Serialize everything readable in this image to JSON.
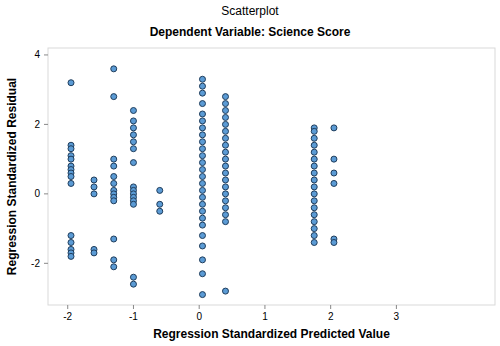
{
  "chart_data": {
    "type": "scatter",
    "title": "Scatterplot",
    "subtitle": "Dependent Variable: Science Score",
    "x_label": "Regression Standardized Predicted Value",
    "y_label": "Regression Standardized Residual",
    "color": "#5b9bd5",
    "marker": "circle",
    "grid": false,
    "xlim": [
      -2.3,
      4.5
    ],
    "xticks": [
      -2,
      -1,
      0,
      1,
      2,
      3
    ],
    "ylim": [
      -3.2,
      4.2
    ],
    "yticks": [
      -2,
      0,
      2,
      4
    ],
    "x": [
      -1.95,
      -1.95,
      -1.95,
      -1.95,
      -1.95,
      -1.95,
      -1.95,
      -1.95,
      -1.95,
      -1.95,
      -1.95,
      -1.95,
      -1.95,
      -1.95,
      -1.95,
      -1.6,
      -1.6,
      -1.6,
      -1.6,
      -1.6,
      -1.3,
      -1.3,
      -1.3,
      -1.3,
      -1.3,
      -1.3,
      -1.3,
      -1.3,
      -1.3,
      -1.3,
      -1.3,
      -1.3,
      -1.3,
      -1.0,
      -1.0,
      -1.0,
      -1.0,
      -1.0,
      -1.0,
      -1.0,
      -1.0,
      -1.0,
      -1.0,
      -1.0,
      -1.0,
      -1.0,
      -1.0,
      -1.0,
      -0.6,
      -0.6,
      -0.6,
      0.05,
      0.05,
      0.05,
      0.05,
      0.05,
      0.05,
      0.05,
      0.05,
      0.05,
      0.05,
      0.05,
      0.05,
      0.05,
      0.05,
      0.05,
      0.05,
      0.05,
      0.05,
      0.05,
      0.05,
      0.05,
      0.05,
      0.05,
      0.05,
      0.05,
      0.05,
      0.4,
      0.4,
      0.4,
      0.4,
      0.4,
      0.4,
      0.4,
      0.4,
      0.4,
      0.4,
      0.4,
      0.4,
      0.4,
      0.4,
      0.4,
      0.4,
      0.4,
      0.4,
      0.4,
      0.4,
      1.75,
      1.75,
      1.75,
      1.75,
      1.75,
      1.75,
      1.75,
      1.75,
      1.75,
      1.75,
      1.75,
      1.75,
      1.75,
      1.75,
      1.75,
      1.75,
      1.75,
      1.75,
      2.05,
      2.05,
      2.05,
      2.05,
      2.05,
      2.05
    ],
    "values": [
      3.2,
      1.4,
      1.3,
      1.1,
      1.0,
      0.8,
      0.7,
      0.6,
      0.5,
      0.3,
      -1.2,
      -1.4,
      -1.6,
      -1.7,
      -1.8,
      0.4,
      0.2,
      0.0,
      -1.6,
      -1.7,
      3.6,
      2.8,
      1.0,
      0.8,
      0.5,
      0.3,
      0.1,
      0.0,
      -0.1,
      -0.2,
      -1.3,
      -1.9,
      -2.1,
      2.4,
      2.1,
      1.9,
      1.7,
      1.5,
      1.3,
      0.9,
      0.2,
      0.1,
      0.0,
      -0.1,
      -0.2,
      -0.3,
      -2.4,
      -2.6,
      0.1,
      -0.3,
      -0.5,
      3.3,
      3.1,
      2.9,
      2.6,
      2.3,
      2.1,
      1.9,
      1.7,
      1.5,
      1.3,
      1.1,
      0.9,
      0.7,
      0.5,
      0.3,
      0.1,
      -0.1,
      -0.3,
      -0.5,
      -0.7,
      -0.9,
      -1.2,
      -1.5,
      -1.9,
      -2.3,
      -2.9,
      2.8,
      2.6,
      2.4,
      2.2,
      2.0,
      1.8,
      1.6,
      1.4,
      1.2,
      1.0,
      0.8,
      0.6,
      0.4,
      0.2,
      0.0,
      -0.2,
      -0.4,
      -0.6,
      -0.8,
      -2.8,
      1.9,
      1.8,
      1.6,
      1.4,
      1.2,
      1.0,
      0.8,
      0.6,
      0.4,
      0.2,
      0.0,
      -0.2,
      -0.4,
      -0.6,
      -0.8,
      -1.0,
      -1.2,
      -1.4,
      1.9,
      1.0,
      0.6,
      0.3,
      -1.3,
      -1.4
    ]
  }
}
